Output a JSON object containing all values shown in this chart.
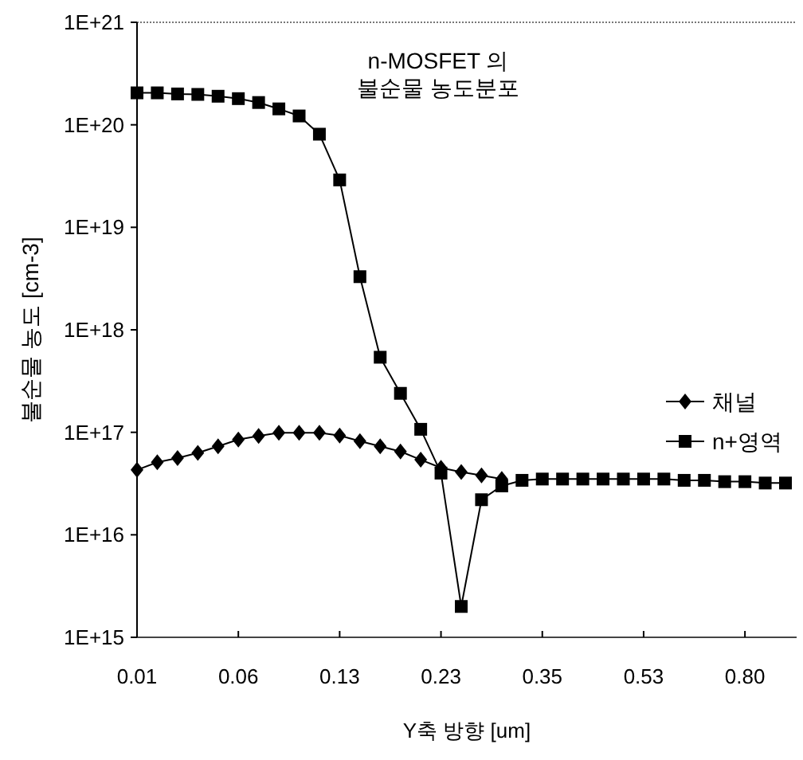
{
  "chart_data": {
    "type": "line",
    "title": "n-MOSFET 의\n불순물 농도분포",
    "xlabel": "Y축 방향 [um]",
    "ylabel": "불순물 농도 [cm-3]",
    "categories": [
      "0.01",
      null,
      null,
      null,
      null,
      "0.06",
      null,
      null,
      null,
      null,
      "0.13",
      null,
      null,
      null,
      null,
      "0.23",
      null,
      null,
      null,
      null,
      "0.35",
      null,
      null,
      null,
      null,
      "0.53",
      null,
      null,
      null,
      null,
      "0.80",
      null,
      null
    ],
    "series": [
      {
        "name": "채널",
        "color": "#000000",
        "marker": "diamond",
        "values": [
          4.3e+16,
          5.1e+16,
          5.6e+16,
          6.3e+16,
          7.3e+16,
          8.5e+16,
          9.2e+16,
          9.9e+16,
          9.9e+16,
          9.9e+16,
          9.3e+16,
          8.2e+16,
          7.3e+16,
          6.5e+16,
          5.4e+16,
          4.5e+16,
          4.1e+16,
          3.8e+16,
          3.5e+16,
          null,
          null,
          null,
          null,
          null,
          null,
          null,
          null,
          null,
          null,
          null,
          null,
          null,
          null
        ]
      },
      {
        "name": "n+영역",
        "color": "#000000",
        "marker": "square",
        "values": [
          2.05e+20,
          2.05e+20,
          2e+20,
          1.98e+20,
          1.9e+20,
          1.8e+20,
          1.65e+20,
          1.43e+20,
          1.22e+20,
          8.1e+19,
          2.9e+19,
          3.3e+18,
          5.4e+17,
          2.4e+17,
          1.07e+17,
          4e+16,
          2000000000000000.0,
          2.2e+16,
          3e+16,
          3.4e+16,
          3.5e+16,
          3.5e+16,
          3.5e+16,
          3.5e+16,
          3.5e+16,
          3.5e+16,
          3.5e+16,
          3.4e+16,
          3.4e+16,
          3.3e+16,
          3.3e+16,
          3.2e+16,
          3.2e+16
        ]
      }
    ],
    "log": "y",
    "ylim": [
      1000000000000000.0,
      1e+21
    ],
    "yticks": [
      {
        "value": 1000000000000000.0,
        "label": "1E+15"
      },
      {
        "value": 1e+16,
        "label": "1E+16"
      },
      {
        "value": 1e+17,
        "label": "1E+17"
      },
      {
        "value": 1e+18,
        "label": "1E+18"
      },
      {
        "value": 1e+19,
        "label": "1E+19"
      },
      {
        "value": 1e+20,
        "label": "1E+20"
      },
      {
        "value": 1e+21,
        "label": "1E+21"
      }
    ],
    "legend": "right",
    "line_style": "solid"
  }
}
